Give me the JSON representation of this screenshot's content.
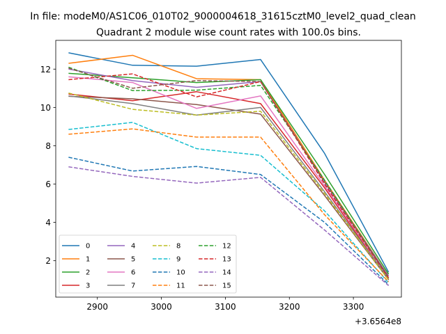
{
  "figure": {
    "suptitle": "In file: modeM0/AS1C06_010T02_9000004618_31615cztM0_level2_quad_clean",
    "offset_label": "+3.6564e8"
  },
  "chart_data": {
    "type": "line",
    "title": "Quadrant 2 module wise count rates with 100.0s bins.",
    "xlabel": "",
    "ylabel": "",
    "x_offset": 365640000,
    "x": [
      2855,
      2955,
      3055,
      3155,
      3255,
      3355
    ],
    "xlim": [
      2835,
      3375
    ],
    "ylim": [
      0.1,
      13.5
    ],
    "xticks": [
      2900,
      3000,
      3100,
      3200,
      3300
    ],
    "yticks": [
      2,
      4,
      6,
      8,
      10,
      12
    ],
    "grid": false,
    "legend": {
      "placement": "lower-left",
      "columns": 4
    },
    "series": [
      {
        "name": "0",
        "color": "#1f77b4",
        "dash": "solid",
        "values": [
          12.85,
          12.2,
          12.15,
          12.5,
          7.6,
          1.4
        ]
      },
      {
        "name": "1",
        "color": "#ff7f0e",
        "dash": "solid",
        "values": [
          12.3,
          12.72,
          11.5,
          11.45,
          6.2,
          1.2
        ]
      },
      {
        "name": "2",
        "color": "#2ca02c",
        "dash": "solid",
        "values": [
          11.78,
          11.55,
          11.3,
          11.45,
          6.5,
          1.3
        ]
      },
      {
        "name": "3",
        "color": "#d62728",
        "dash": "solid",
        "values": [
          10.7,
          10.35,
          10.82,
          10.2,
          5.8,
          1.0
        ]
      },
      {
        "name": "4",
        "color": "#9467bd",
        "dash": "solid",
        "values": [
          12.0,
          11.4,
          11.05,
          11.35,
          6.1,
          1.2
        ]
      },
      {
        "name": "5",
        "color": "#8c564b",
        "dash": "solid",
        "values": [
          10.58,
          10.45,
          10.15,
          9.65,
          5.4,
          1.0
        ]
      },
      {
        "name": "6",
        "color": "#e377c2",
        "dash": "solid",
        "values": [
          11.6,
          11.3,
          9.95,
          10.6,
          5.9,
          1.1
        ]
      },
      {
        "name": "7",
        "color": "#7f7f7f",
        "dash": "solid",
        "values": [
          10.6,
          10.2,
          9.6,
          10.0,
          5.6,
          1.05
        ]
      },
      {
        "name": "8",
        "color": "#bcbd22",
        "dash": "dashed",
        "values": [
          10.75,
          9.9,
          9.6,
          9.8,
          5.5,
          1.0
        ]
      },
      {
        "name": "9",
        "color": "#17becf",
        "dash": "dashed",
        "values": [
          8.85,
          9.22,
          7.85,
          7.5,
          4.6,
          0.85
        ]
      },
      {
        "name": "10",
        "color": "#1f77b4",
        "dash": "dashed",
        "values": [
          7.4,
          6.68,
          6.92,
          6.5,
          4.0,
          0.75
        ]
      },
      {
        "name": "11",
        "color": "#ff7f0e",
        "dash": "dashed",
        "values": [
          8.6,
          8.88,
          8.45,
          8.45,
          4.4,
          0.9
        ]
      },
      {
        "name": "12",
        "color": "#2ca02c",
        "dash": "dashed",
        "values": [
          12.1,
          10.88,
          10.9,
          11.15,
          6.2,
          1.1
        ]
      },
      {
        "name": "13",
        "color": "#d62728",
        "dash": "dashed",
        "values": [
          11.45,
          11.75,
          10.55,
          11.35,
          6.0,
          1.1
        ]
      },
      {
        "name": "14",
        "color": "#9467bd",
        "dash": "dashed",
        "values": [
          6.9,
          6.4,
          6.05,
          6.35,
          3.6,
          0.7
        ]
      },
      {
        "name": "15",
        "color": "#8c564b",
        "dash": "dashed",
        "values": [
          12.05,
          11.0,
          11.4,
          11.35,
          6.1,
          1.15
        ]
      }
    ]
  }
}
